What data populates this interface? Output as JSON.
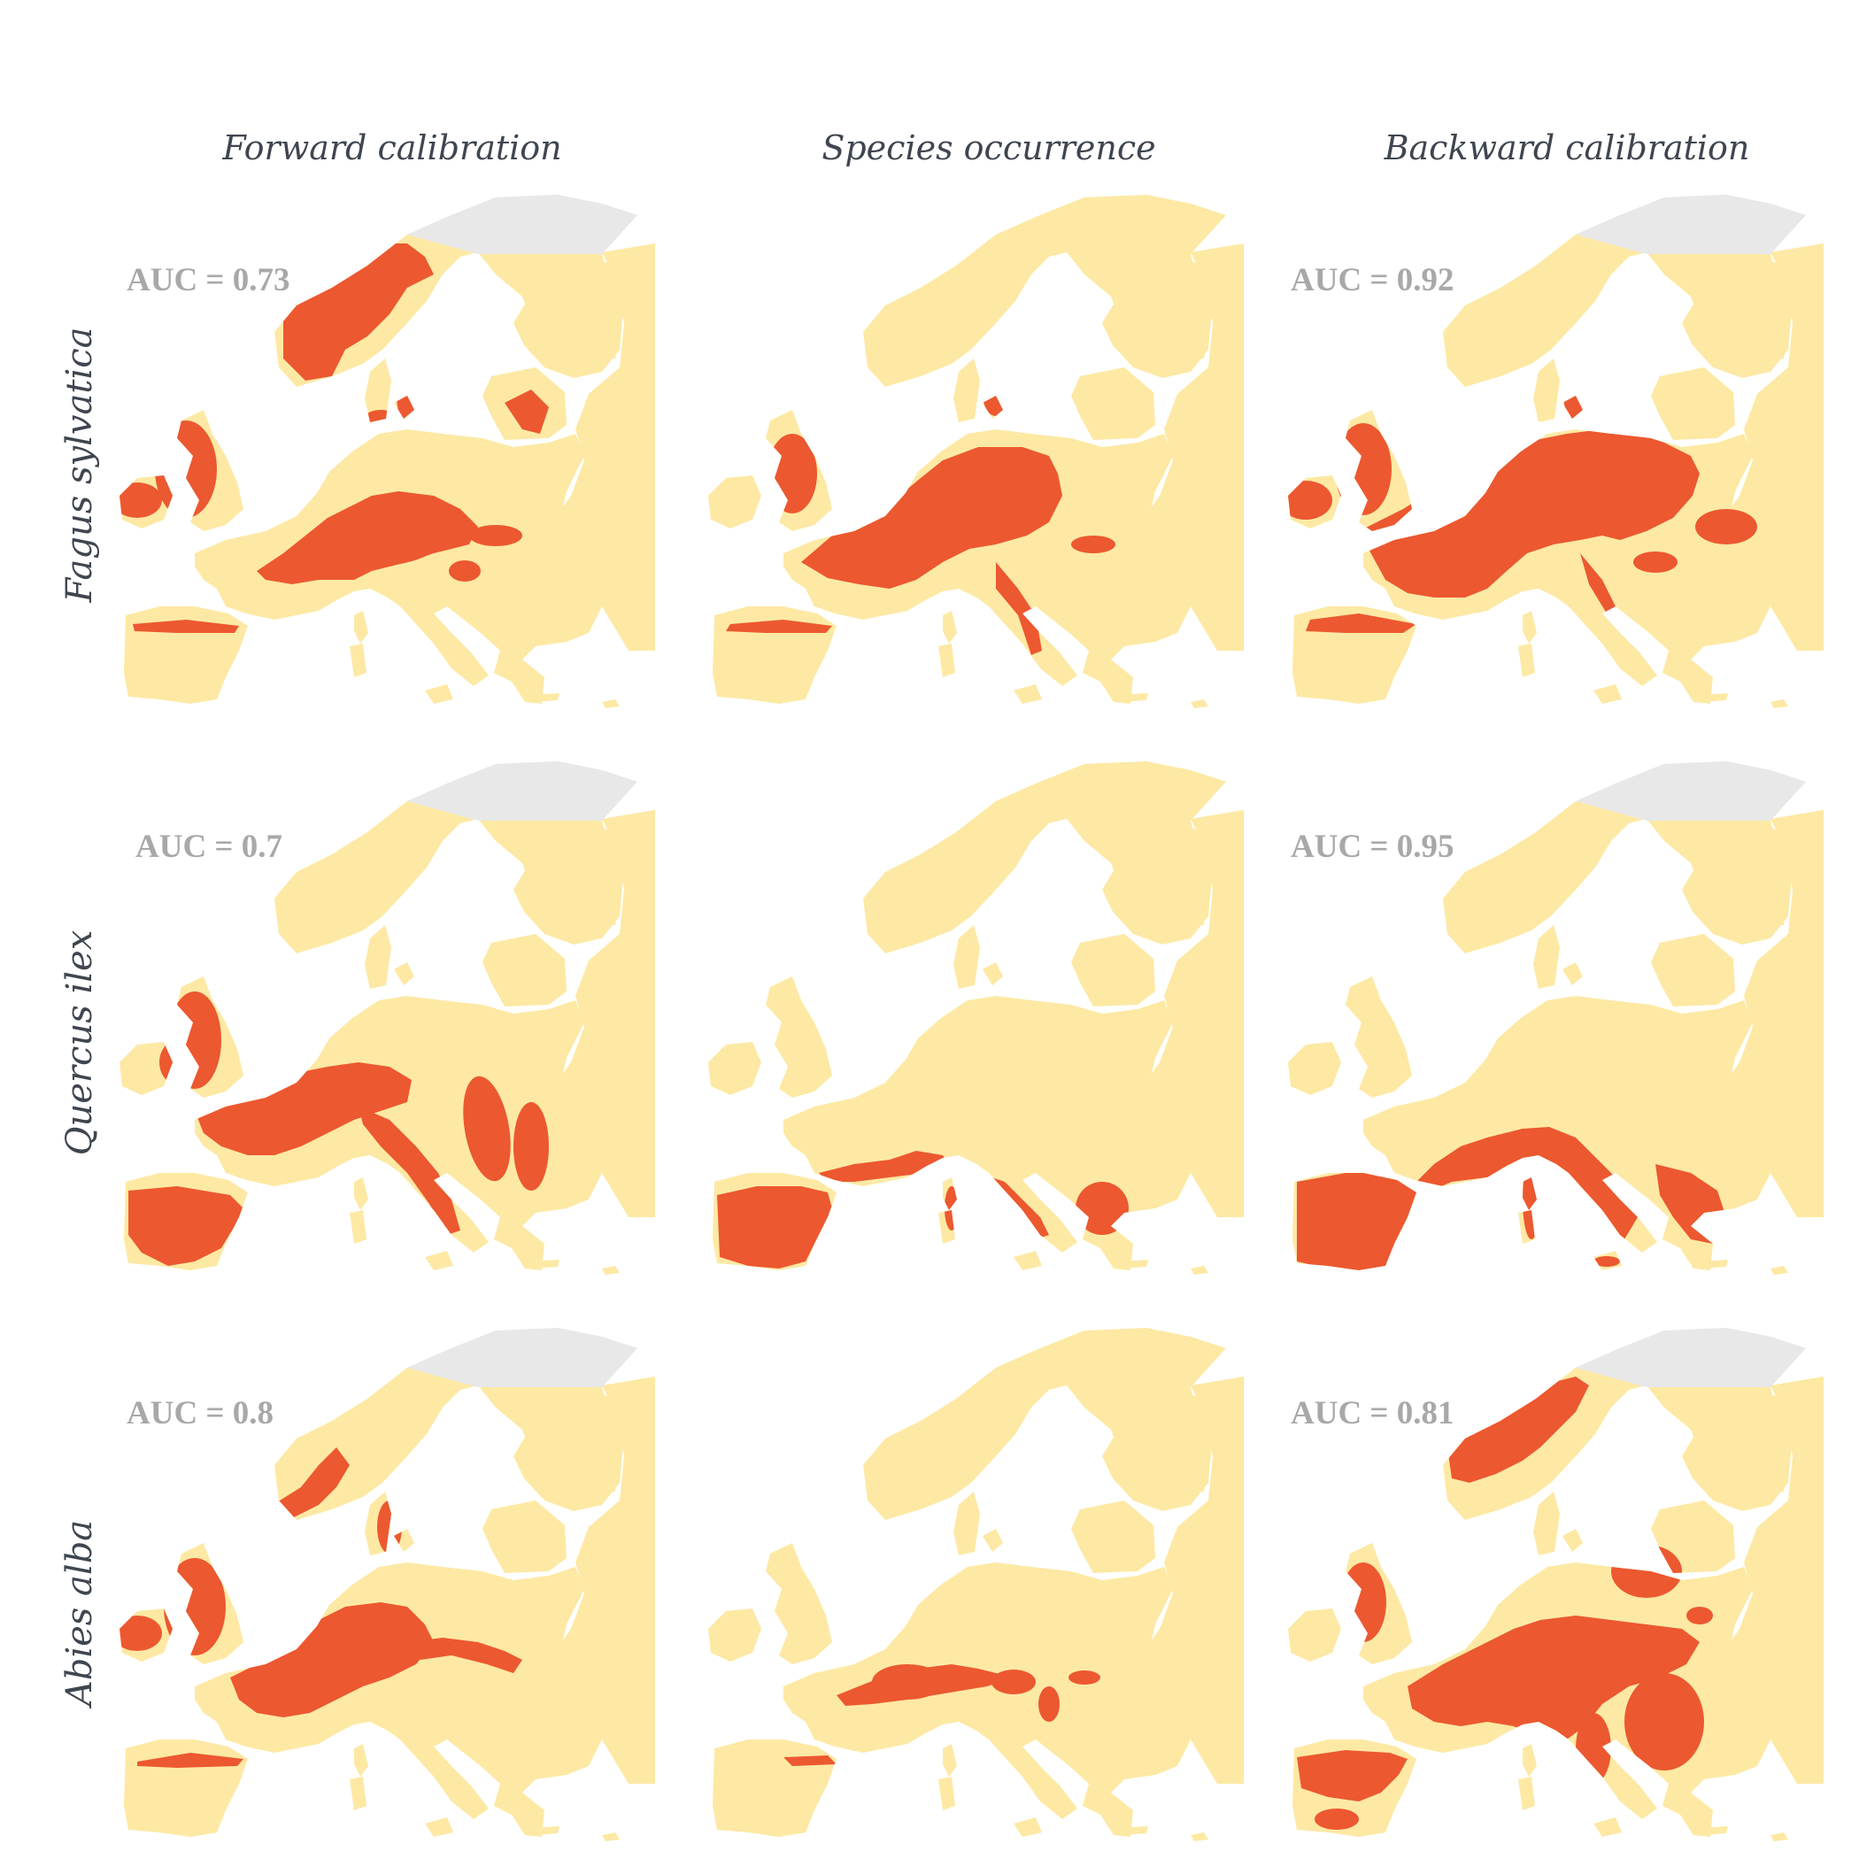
{
  "columns": [
    "Forward calibration",
    "Species occurrence",
    "Backward calibration"
  ],
  "rows": [
    {
      "species": "Fagus sylvatica",
      "panels": [
        {
          "name": "forward",
          "auc": "AUC = 0.73",
          "pattern": "fagus-forward"
        },
        {
          "name": "occurrence",
          "auc": "",
          "pattern": "fagus-occurrence"
        },
        {
          "name": "backward",
          "auc": "AUC = 0.92",
          "pattern": "fagus-backward"
        }
      ]
    },
    {
      "species": "Quercus ilex",
      "panels": [
        {
          "name": "forward",
          "auc": "AUC = 0.7",
          "pattern": "quercus-forward"
        },
        {
          "name": "occurrence",
          "auc": "",
          "pattern": "quercus-occurrence"
        },
        {
          "name": "backward",
          "auc": "AUC = 0.95",
          "pattern": "quercus-backward"
        }
      ]
    },
    {
      "species": "Abies alba",
      "panels": [
        {
          "name": "forward",
          "auc": "AUC = 0.8",
          "pattern": "abies-forward"
        },
        {
          "name": "occurrence",
          "auc": "",
          "pattern": "abies-occurrence"
        },
        {
          "name": "backward",
          "auc": "AUC = 0.81",
          "pattern": "abies-backward"
        }
      ]
    }
  ],
  "colors": {
    "land": "#fde9a4",
    "presence": "#ec5830",
    "excluded": "#e8e8e8",
    "text": "#3f4650",
    "auc": "#a8a8a8"
  }
}
